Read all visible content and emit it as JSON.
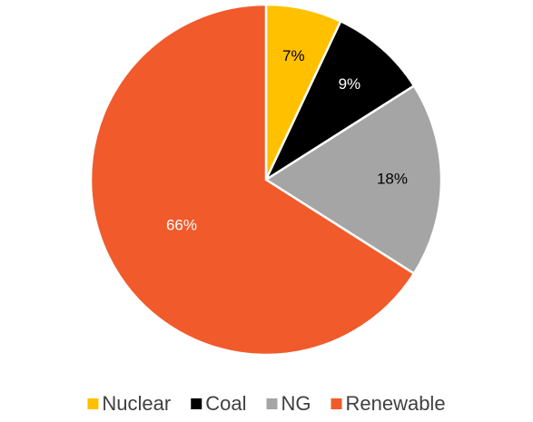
{
  "chart_data": {
    "type": "pie",
    "categories": [
      "Nuclear",
      "Coal",
      "NG",
      "Renewable"
    ],
    "values": [
      7,
      9,
      18,
      66
    ],
    "value_labels": [
      "7%",
      "9%",
      "18%",
      "66%"
    ],
    "colors": [
      "#ffc000",
      "#000000",
      "#a5a5a5",
      "#f15a2b"
    ],
    "legend": "bottom"
  }
}
